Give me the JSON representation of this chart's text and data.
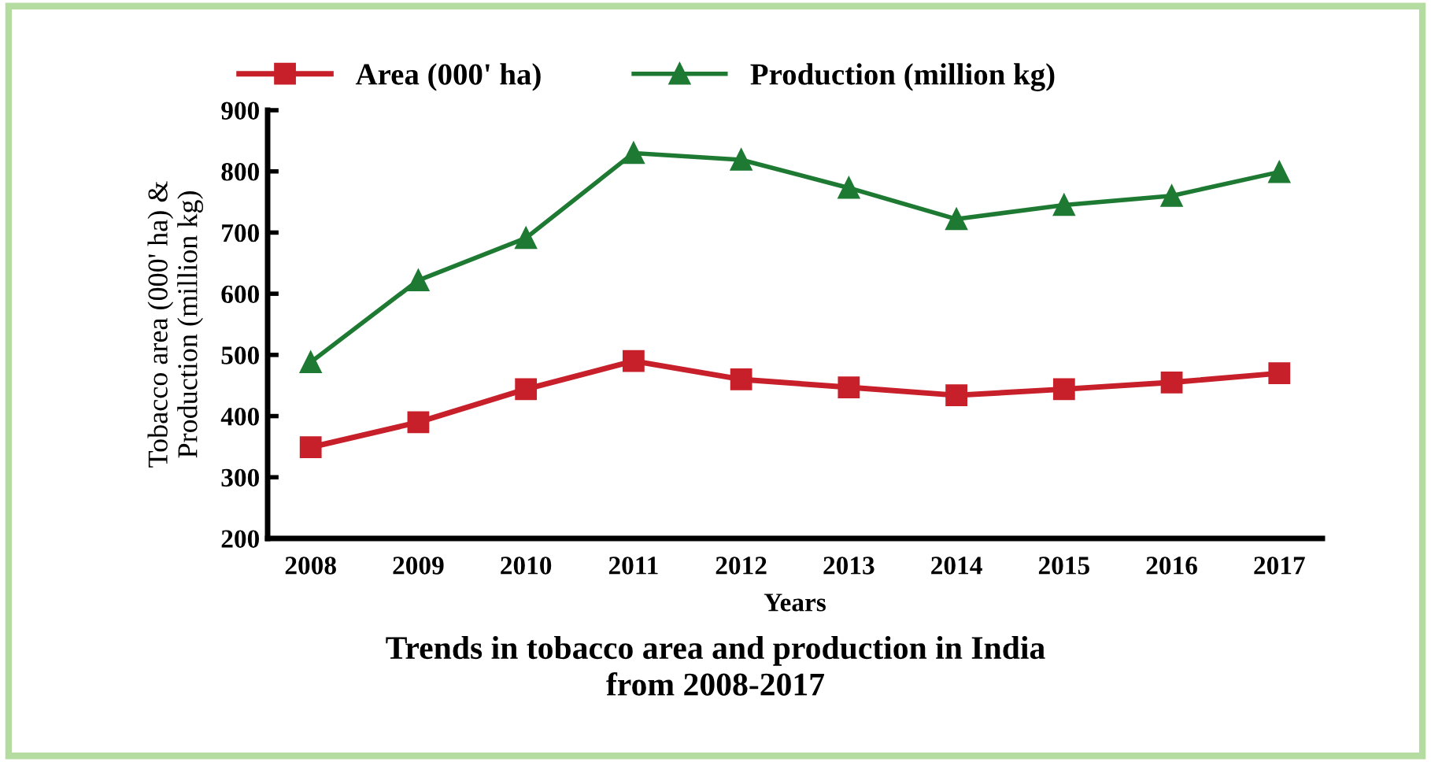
{
  "chart_data": {
    "type": "line",
    "title": "Trends in tobacco area and production in India\nfrom 2008-2017",
    "xlabel": "Years",
    "ylabel": "Tobacco area (000' ha) &\nProduction (million kg)",
    "categories": [
      "2008",
      "2009",
      "2010",
      "2011",
      "2012",
      "2013",
      "2014",
      "2015",
      "2016",
      "2017"
    ],
    "series": [
      {
        "name": "Area (000' ha)",
        "color": "#c8202a",
        "marker": "square",
        "values": [
          349,
          390,
          444,
          490,
          460,
          447,
          434,
          444,
          455,
          470
        ]
      },
      {
        "name": "Production (million kg)",
        "color": "#1e7a32",
        "marker": "triangle",
        "values": [
          488,
          622,
          691,
          830,
          819,
          773,
          722,
          745,
          760,
          799
        ]
      }
    ],
    "ylim": [
      200,
      900
    ],
    "yticks": [
      200,
      300,
      400,
      500,
      600,
      700,
      800,
      900
    ],
    "grid": false,
    "legend": "top"
  }
}
